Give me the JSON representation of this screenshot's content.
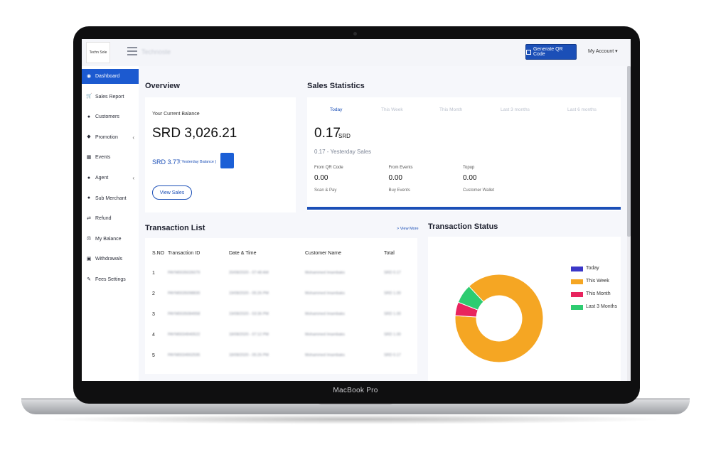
{
  "app": {
    "logo_text": "Techn Sole",
    "app_name": "Technoste"
  },
  "topbar": {
    "qr_button": "Generate QR Code",
    "account": "My Account ▾"
  },
  "sidebar": {
    "items": [
      {
        "label": "Dashboard",
        "icon": "dashboard-icon",
        "glyph": "◉"
      },
      {
        "label": "Sales Report",
        "icon": "cart-icon",
        "glyph": "🛒"
      },
      {
        "label": "Customers",
        "icon": "user-icon",
        "glyph": "●"
      },
      {
        "label": "Promotion",
        "icon": "tag-icon",
        "glyph": "◆",
        "chevron": "‹"
      },
      {
        "label": "Events",
        "icon": "calendar-icon",
        "glyph": "▦"
      },
      {
        "label": "Agent",
        "icon": "users-icon",
        "glyph": "●",
        "chevron": "‹"
      },
      {
        "label": "Sub Merchant",
        "icon": "user-plus-icon",
        "glyph": "●"
      },
      {
        "label": "Refund",
        "icon": "exchange-icon",
        "glyph": "⇄"
      },
      {
        "label": "My Balance",
        "icon": "balance-scale-icon",
        "glyph": "⚖"
      },
      {
        "label": "Withdrawals",
        "icon": "money-icon",
        "glyph": "▣"
      },
      {
        "label": "Fees Settings",
        "icon": "wrench-icon",
        "glyph": "✎"
      }
    ]
  },
  "overview": {
    "title": "Overview",
    "balance_label": "Your Current Balance",
    "balance": "SRD 3,026.21",
    "yesterday_amount": "SRD 3.77",
    "yesterday_note": "( Yesterday Balance )",
    "view_sales": "View Sales"
  },
  "sales": {
    "title": "Sales Statistics",
    "tabs": [
      "Today",
      "This Week",
      "This Month",
      "Last 3 months",
      "Last 6 months"
    ],
    "active_tab": 0,
    "amount": "0.17",
    "currency": "SRD",
    "yesterday": "0.17 - Yesterday Sales",
    "stats": [
      {
        "label": "From QR Code",
        "value": "0.00",
        "sub": "Scan & Pay"
      },
      {
        "label": "From Events",
        "value": "0.00",
        "sub": "Buy Events"
      },
      {
        "label": "Topup",
        "value": "0.00",
        "sub": "Customer Wallet"
      }
    ]
  },
  "transactions": {
    "title": "Transaction List",
    "view_more": "> View More",
    "headers": [
      "S.NO",
      "Transaction ID",
      "Date & Time",
      "Customer Name",
      "Total"
    ],
    "rows": [
      {
        "sno": "1",
        "id": "PAYM0035026079",
        "date": "20/08/2020 - 07:48 AM",
        "name": "Mohammed Imambaks",
        "total": "SRD 0.17"
      },
      {
        "sno": "2",
        "id": "PAYM0035098830",
        "date": "19/08/2020 - 05:26 PM",
        "name": "Mohammed Imambaks",
        "total": "SRD 1.00"
      },
      {
        "sno": "3",
        "id": "PAYM0035084958",
        "date": "19/08/2020 - 03:36 PM",
        "name": "Mohammed Imambaks",
        "total": "SRD 1.00"
      },
      {
        "sno": "4",
        "id": "PAYM0034940522",
        "date": "18/08/2020 - 07:12 PM",
        "name": "Mohammed Imambaks",
        "total": "SRD 1.00"
      },
      {
        "sno": "5",
        "id": "PAYM0034902595",
        "date": "18/08/2020 - 05:26 PM",
        "name": "Mohammed Imambaks",
        "total": "SRD 0.17"
      }
    ]
  },
  "status": {
    "title": "Transaction Status",
    "legend": [
      {
        "label": "Today",
        "color": "#3b37c8"
      },
      {
        "label": "This Week",
        "color": "#f5a623"
      },
      {
        "label": "This Month",
        "color": "#e8245e"
      },
      {
        "label": "Last 3 Months",
        "color": "#2ecc71"
      }
    ]
  },
  "chart_data": {
    "type": "pie",
    "labels": [
      "Today",
      "This Week",
      "This Month",
      "Last 3 Months"
    ],
    "values": [
      0,
      88,
      5,
      7
    ],
    "colors": [
      "#3b37c8",
      "#f5a623",
      "#e8245e",
      "#2ecc71"
    ]
  },
  "device": {
    "label": "MacBook Pro"
  }
}
